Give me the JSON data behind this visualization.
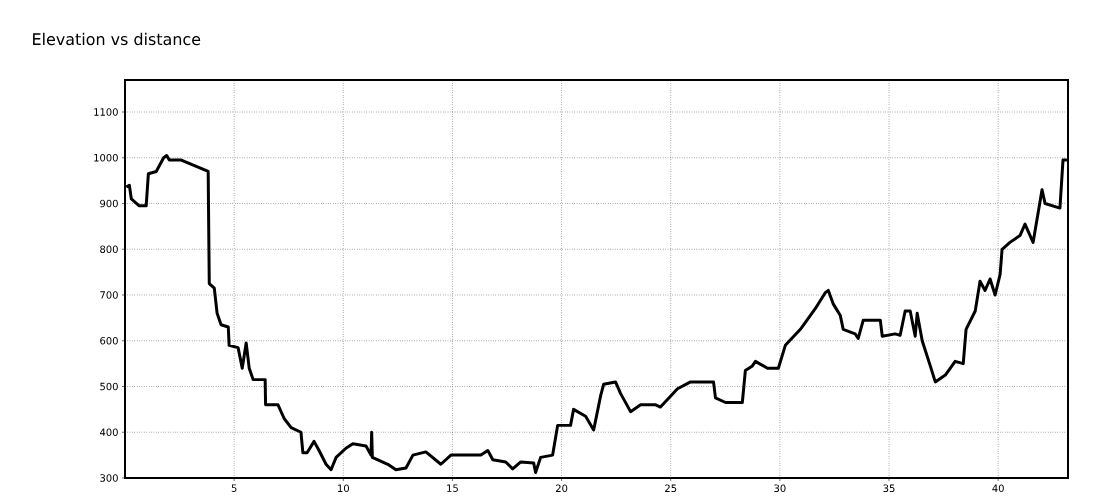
{
  "chart_data": {
    "type": "line",
    "title": "Elevation vs distance",
    "x": [
      0.06,
      0.2,
      0.29,
      0.65,
      0.97,
      1.07,
      1.43,
      1.77,
      1.91,
      2.03,
      2.58,
      3.81,
      3.86,
      4.09,
      4.22,
      4.4,
      4.73,
      4.77,
      5.18,
      5.37,
      5.55,
      5.69,
      5.87,
      6.42,
      6.44,
      7.01,
      7.29,
      7.61,
      8.06,
      8.15,
      8.34,
      8.66,
      8.89,
      9.21,
      9.44,
      9.67,
      10.12,
      10.44,
      11.04,
      11.27,
      11.3,
      11.33,
      12.04,
      12.41,
      12.87,
      13.19,
      13.78,
      14.47,
      14.93,
      16.3,
      16.62,
      16.85,
      17.44,
      17.76,
      18.13,
      18.72,
      18.81,
      19.04,
      19.59,
      19.82,
      20.41,
      20.55,
      21.1,
      21.47,
      21.79,
      21.93,
      22.47,
      22.7,
      23.16,
      23.62,
      24.31,
      24.53,
      25.31,
      25.91,
      26.96,
      27.05,
      27.51,
      28.28,
      28.42,
      28.74,
      28.88,
      29.43,
      29.93,
      30.25,
      30.94,
      31.62,
      32.08,
      32.22,
      32.45,
      32.77,
      32.9,
      33.45,
      33.59,
      33.82,
      34.6,
      34.69,
      35.28,
      35.51,
      35.74,
      35.97,
      36.2,
      36.29,
      36.52,
      36.89,
      37.12,
      37.58,
      38.03,
      38.4,
      38.53,
      38.95,
      39.17,
      39.4,
      39.63,
      39.86,
      40.09,
      40.18,
      40.54,
      41.0,
      41.23,
      41.6,
      42.01,
      42.15,
      42.83,
      42.97,
      43.15
    ],
    "series": [
      {
        "color": "#000000",
        "values": [
          936,
          940,
          910,
          895,
          895,
          965,
          970,
          1000,
          1005,
          995,
          995,
          970,
          725,
          715,
          660,
          635,
          630,
          590,
          585,
          540,
          595,
          540,
          515,
          515,
          460,
          460,
          430,
          410,
          400,
          355,
          355,
          380,
          360,
          330,
          318,
          345,
          365,
          375,
          370,
          350,
          400,
          345,
          330,
          318,
          322,
          350,
          357,
          330,
          350,
          350,
          360,
          340,
          335,
          320,
          335,
          333,
          312,
          345,
          350,
          415,
          415,
          450,
          435,
          405,
          480,
          505,
          510,
          485,
          445,
          460,
          460,
          455,
          495,
          510,
          510,
          475,
          465,
          465,
          535,
          545,
          555,
          540,
          540,
          590,
          625,
          670,
          705,
          710,
          680,
          655,
          625,
          615,
          605,
          645,
          645,
          610,
          615,
          612,
          665,
          665,
          610,
          660,
          600,
          545,
          510,
          525,
          555,
          550,
          625,
          665,
          730,
          710,
          735,
          700,
          745,
          800,
          815,
          830,
          855,
          815,
          930,
          900,
          890,
          995,
          995
        ]
      }
    ],
    "xlim": [
      0,
      43.2
    ],
    "ylim": [
      300,
      1170
    ],
    "xticks": [
      5,
      10,
      15,
      20,
      25,
      30,
      35,
      40
    ],
    "yticks": [
      300,
      400,
      500,
      600,
      700,
      800,
      900,
      1000,
      1100
    ],
    "grid": true,
    "marker": "none",
    "line_style": "solid"
  }
}
